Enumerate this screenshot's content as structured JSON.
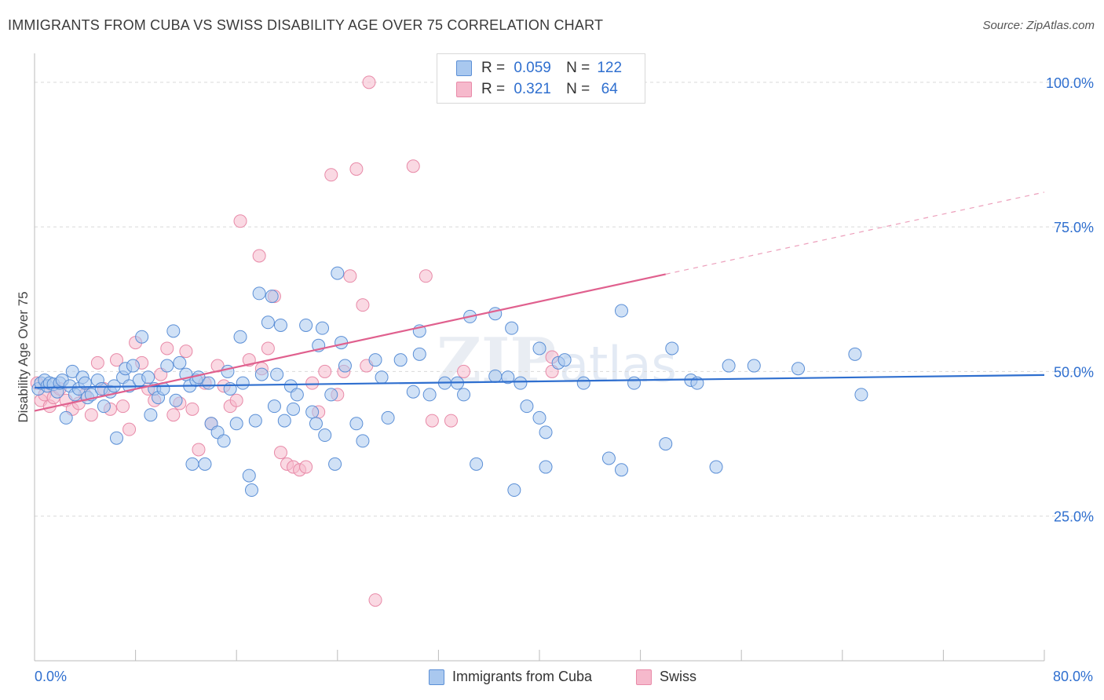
{
  "header": {
    "title": "IMMIGRANTS FROM CUBA VS SWISS DISABILITY AGE OVER 75 CORRELATION CHART",
    "source": "Source: ZipAtlas.com"
  },
  "legend_top": {
    "rows": [
      {
        "r_label": "R =",
        "r_value": "0.059",
        "n_label": "N =",
        "n_value": "122"
      },
      {
        "r_label": "R =",
        "r_value": "0.321",
        "n_label": "N =",
        "n_value": "64"
      }
    ]
  },
  "legend_bottom": {
    "items": [
      {
        "label": "Immigrants from Cuba"
      },
      {
        "label": "Swiss"
      }
    ]
  },
  "axes": {
    "x_min_label": "0.0%",
    "x_max_label": "80.0%"
  },
  "colors": {
    "blue_fill": "#a9c8ef",
    "blue_stroke": "#5b8fd6",
    "blue_line": "#2f6fcf",
    "pink_fill": "#f6b9cc",
    "pink_stroke": "#e88aa8",
    "pink_line": "#e0608e",
    "grid": "#d9d9d9",
    "tick_label": "#2f6fcf"
  },
  "chart_data": {
    "type": "scatter",
    "title": "IMMIGRANTS FROM CUBA VS SWISS DISABILITY AGE OVER 75 CORRELATION CHART",
    "xlabel": "",
    "ylabel": "Disability Age Over 75",
    "xlim": [
      0,
      80
    ],
    "ylim": [
      0,
      105
    ],
    "y_ticks": [
      {
        "value": 25,
        "label": "25.0%"
      },
      {
        "value": 50,
        "label": "50.0%"
      },
      {
        "value": 75,
        "label": "75.0%"
      },
      {
        "value": 100,
        "label": "100.0%"
      }
    ],
    "x_tick_values": [
      0,
      8,
      16,
      24,
      32,
      40,
      48,
      56,
      64,
      72,
      80
    ],
    "grid": true,
    "series": [
      {
        "name": "Immigrants from Cuba",
        "color": "blue",
        "trend": {
          "x": [
            0,
            80
          ],
          "y": [
            47.2,
            49.4
          ],
          "solid_until": 80
        },
        "points": [
          [
            0.3,
            47
          ],
          [
            0.5,
            48
          ],
          [
            0.8,
            48.5
          ],
          [
            1,
            47.5
          ],
          [
            1.2,
            48
          ],
          [
            1.5,
            47.8
          ],
          [
            1.8,
            46.5
          ],
          [
            2,
            48
          ],
          [
            2.2,
            48.5
          ],
          [
            2.5,
            42
          ],
          [
            2.8,
            47.5
          ],
          [
            3,
            50
          ],
          [
            3.2,
            46
          ],
          [
            3.5,
            47
          ],
          [
            3.8,
            49
          ],
          [
            4,
            48
          ],
          [
            4.2,
            45.5
          ],
          [
            4.5,
            46
          ],
          [
            5,
            48.5
          ],
          [
            5.3,
            47
          ],
          [
            5.5,
            44
          ],
          [
            6,
            46.5
          ],
          [
            6.3,
            47.5
          ],
          [
            6.5,
            38.5
          ],
          [
            7,
            49
          ],
          [
            7.2,
            50.5
          ],
          [
            7.5,
            47.5
          ],
          [
            7.8,
            51
          ],
          [
            8.3,
            48.5
          ],
          [
            8.5,
            56
          ],
          [
            9,
            49
          ],
          [
            9.2,
            42.5
          ],
          [
            9.5,
            47
          ],
          [
            9.8,
            45.5
          ],
          [
            10.2,
            47
          ],
          [
            10.5,
            51
          ],
          [
            11,
            57
          ],
          [
            11.2,
            45
          ],
          [
            11.5,
            51.5
          ],
          [
            12,
            49.5
          ],
          [
            12.3,
            47.5
          ],
          [
            12.5,
            34
          ],
          [
            12.8,
            48.5
          ],
          [
            13,
            49
          ],
          [
            13.5,
            34
          ],
          [
            13.8,
            48
          ],
          [
            14,
            41
          ],
          [
            14.5,
            39.5
          ],
          [
            15,
            38
          ],
          [
            15.3,
            50
          ],
          [
            15.5,
            47
          ],
          [
            16,
            41
          ],
          [
            16.3,
            56
          ],
          [
            16.5,
            48
          ],
          [
            17,
            32
          ],
          [
            17.2,
            29.5
          ],
          [
            17.5,
            41.5
          ],
          [
            17.8,
            63.5
          ],
          [
            18,
            49.5
          ],
          [
            18.5,
            58.5
          ],
          [
            18.8,
            63
          ],
          [
            19,
            44
          ],
          [
            19.2,
            49.5
          ],
          [
            19.5,
            58
          ],
          [
            19.8,
            41.5
          ],
          [
            20.3,
            47.5
          ],
          [
            20.5,
            43.5
          ],
          [
            20.8,
            46
          ],
          [
            21.5,
            58
          ],
          [
            22,
            43
          ],
          [
            22.3,
            41
          ],
          [
            22.5,
            54.5
          ],
          [
            22.8,
            57.5
          ],
          [
            23,
            39
          ],
          [
            23.5,
            46
          ],
          [
            23.8,
            34
          ],
          [
            24,
            67
          ],
          [
            24.3,
            55
          ],
          [
            24.6,
            51
          ],
          [
            25.5,
            41
          ],
          [
            26,
            38
          ],
          [
            27,
            52
          ],
          [
            27.5,
            49
          ],
          [
            28,
            42
          ],
          [
            29,
            52
          ],
          [
            30,
            46.5
          ],
          [
            30.5,
            53
          ],
          [
            30.5,
            57
          ],
          [
            31.3,
            46
          ],
          [
            32.5,
            48
          ],
          [
            33.5,
            48
          ],
          [
            34,
            46
          ],
          [
            34.5,
            59.5
          ],
          [
            35,
            34
          ],
          [
            36.5,
            60
          ],
          [
            37.5,
            49
          ],
          [
            36.5,
            49.2
          ],
          [
            37.8,
            57.5
          ],
          [
            38,
            29.5
          ],
          [
            38.5,
            48
          ],
          [
            39,
            44
          ],
          [
            40,
            42
          ],
          [
            40.5,
            39.5
          ],
          [
            40,
            54
          ],
          [
            40.5,
            33.5
          ],
          [
            41.5,
            51.5
          ],
          [
            42,
            52
          ],
          [
            43.5,
            48
          ],
          [
            45.5,
            35
          ],
          [
            46.5,
            33
          ],
          [
            46.5,
            60.5
          ],
          [
            47.5,
            48
          ],
          [
            50,
            37.5
          ],
          [
            50.5,
            54
          ],
          [
            52,
            48.5
          ],
          [
            52.5,
            48
          ],
          [
            54,
            33.5
          ],
          [
            55,
            51
          ],
          [
            57,
            51
          ],
          [
            60.5,
            50.5
          ],
          [
            65,
            53
          ],
          [
            65.5,
            46
          ]
        ]
      },
      {
        "name": "Swiss",
        "color": "pink",
        "trend": {
          "x": [
            0,
            80
          ],
          "y": [
            43.2,
            81
          ],
          "solid_until": 50
        },
        "points": [
          [
            0.2,
            48
          ],
          [
            0.5,
            45
          ],
          [
            0.8,
            46
          ],
          [
            1.2,
            44
          ],
          [
            1.5,
            45.5
          ],
          [
            2,
            47
          ],
          [
            2.5,
            45
          ],
          [
            3,
            43.5
          ],
          [
            3.5,
            44.5
          ],
          [
            4,
            46
          ],
          [
            4.5,
            42.5
          ],
          [
            5,
            51.5
          ],
          [
            5.5,
            47
          ],
          [
            6,
            43.5
          ],
          [
            6.5,
            52
          ],
          [
            7,
            44
          ],
          [
            7.5,
            40
          ],
          [
            8,
            55
          ],
          [
            8.5,
            51.5
          ],
          [
            9,
            47
          ],
          [
            9.5,
            45
          ],
          [
            10,
            49.5
          ],
          [
            10.5,
            54
          ],
          [
            11,
            42.5
          ],
          [
            11.5,
            44.5
          ],
          [
            12,
            53.5
          ],
          [
            12.5,
            43.5
          ],
          [
            13,
            36.5
          ],
          [
            13.5,
            48
          ],
          [
            14,
            41
          ],
          [
            14.5,
            51
          ],
          [
            15,
            47.5
          ],
          [
            15.5,
            44
          ],
          [
            16,
            45
          ],
          [
            16.3,
            76
          ],
          [
            17,
            52
          ],
          [
            17.8,
            70
          ],
          [
            18,
            50.5
          ],
          [
            18.5,
            54
          ],
          [
            19,
            63
          ],
          [
            19.5,
            36
          ],
          [
            20,
            34
          ],
          [
            20.5,
            33.5
          ],
          [
            21,
            33
          ],
          [
            21.5,
            33.5
          ],
          [
            22,
            48
          ],
          [
            22.5,
            43
          ],
          [
            23,
            50
          ],
          [
            23.5,
            84
          ],
          [
            24,
            46
          ],
          [
            24.5,
            50
          ],
          [
            25,
            66.5
          ],
          [
            25.5,
            85
          ],
          [
            26,
            61.5
          ],
          [
            26.3,
            51
          ],
          [
            26.5,
            100
          ],
          [
            27,
            10.5
          ],
          [
            30,
            85.5
          ],
          [
            31,
            66.5
          ],
          [
            31.5,
            41.5
          ],
          [
            33,
            41.5
          ],
          [
            34,
            50
          ],
          [
            41,
            52.5
          ],
          [
            41,
            50
          ]
        ]
      }
    ]
  }
}
